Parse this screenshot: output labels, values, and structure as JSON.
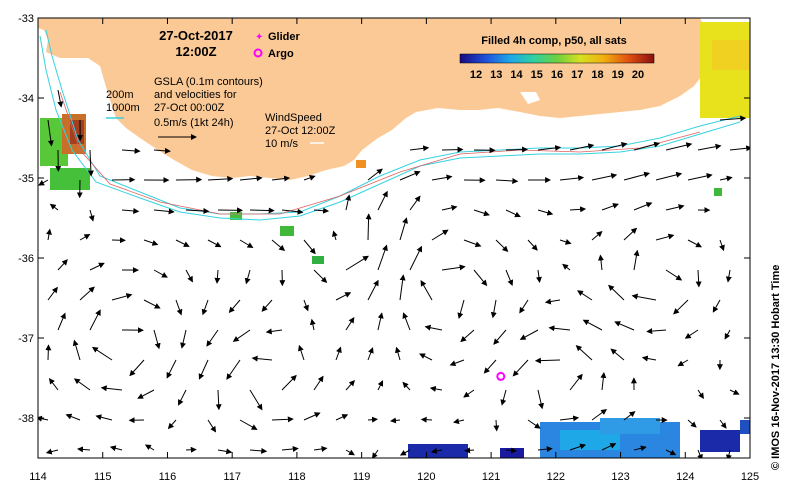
{
  "map": {
    "date_title": "27-Oct-2017",
    "time_title": "12:00Z",
    "legend_glider": "Glider",
    "legend_argo": "Argo",
    "contour_200": "200m",
    "contour_1000": "1000m",
    "gsla_line1": "GSLA (0.1m contours)",
    "gsla_line2": "and velocities for",
    "gsla_line3": "27-Oct 00:00Z",
    "gsla_line4": "0.5m/s (1kt 24h)",
    "wind_line1": "WindSpeed",
    "wind_line2": "27-Oct 12:00Z",
    "wind_line3": "10 m/s",
    "colorbar_title": "Filled 4h comp, p50, all sats",
    "colorbar_ticks": [
      "12",
      "13",
      "14",
      "15",
      "16",
      "17",
      "18",
      "19",
      "20"
    ],
    "credit": "© IMOS 16-Nov-2017 13:30 Hobart Time",
    "lon_ticks": [
      "114",
      "115",
      "116",
      "117",
      "118",
      "119",
      "120",
      "121",
      "122",
      "123",
      "124",
      "125"
    ],
    "lat_ticks": [
      "-33",
      "-34",
      "-35",
      "-36",
      "-37",
      "-38"
    ],
    "lon_range": [
      114,
      125
    ],
    "lat_range": [
      -38.5,
      -33
    ],
    "argo_float": {
      "lon": 121.15,
      "lat": -37.48
    },
    "colors": {
      "land": "#fbc995",
      "contour": "#35d3e0",
      "glider": "#ff00ff",
      "argo": "#ff00ff",
      "title": "#000000"
    }
  }
}
